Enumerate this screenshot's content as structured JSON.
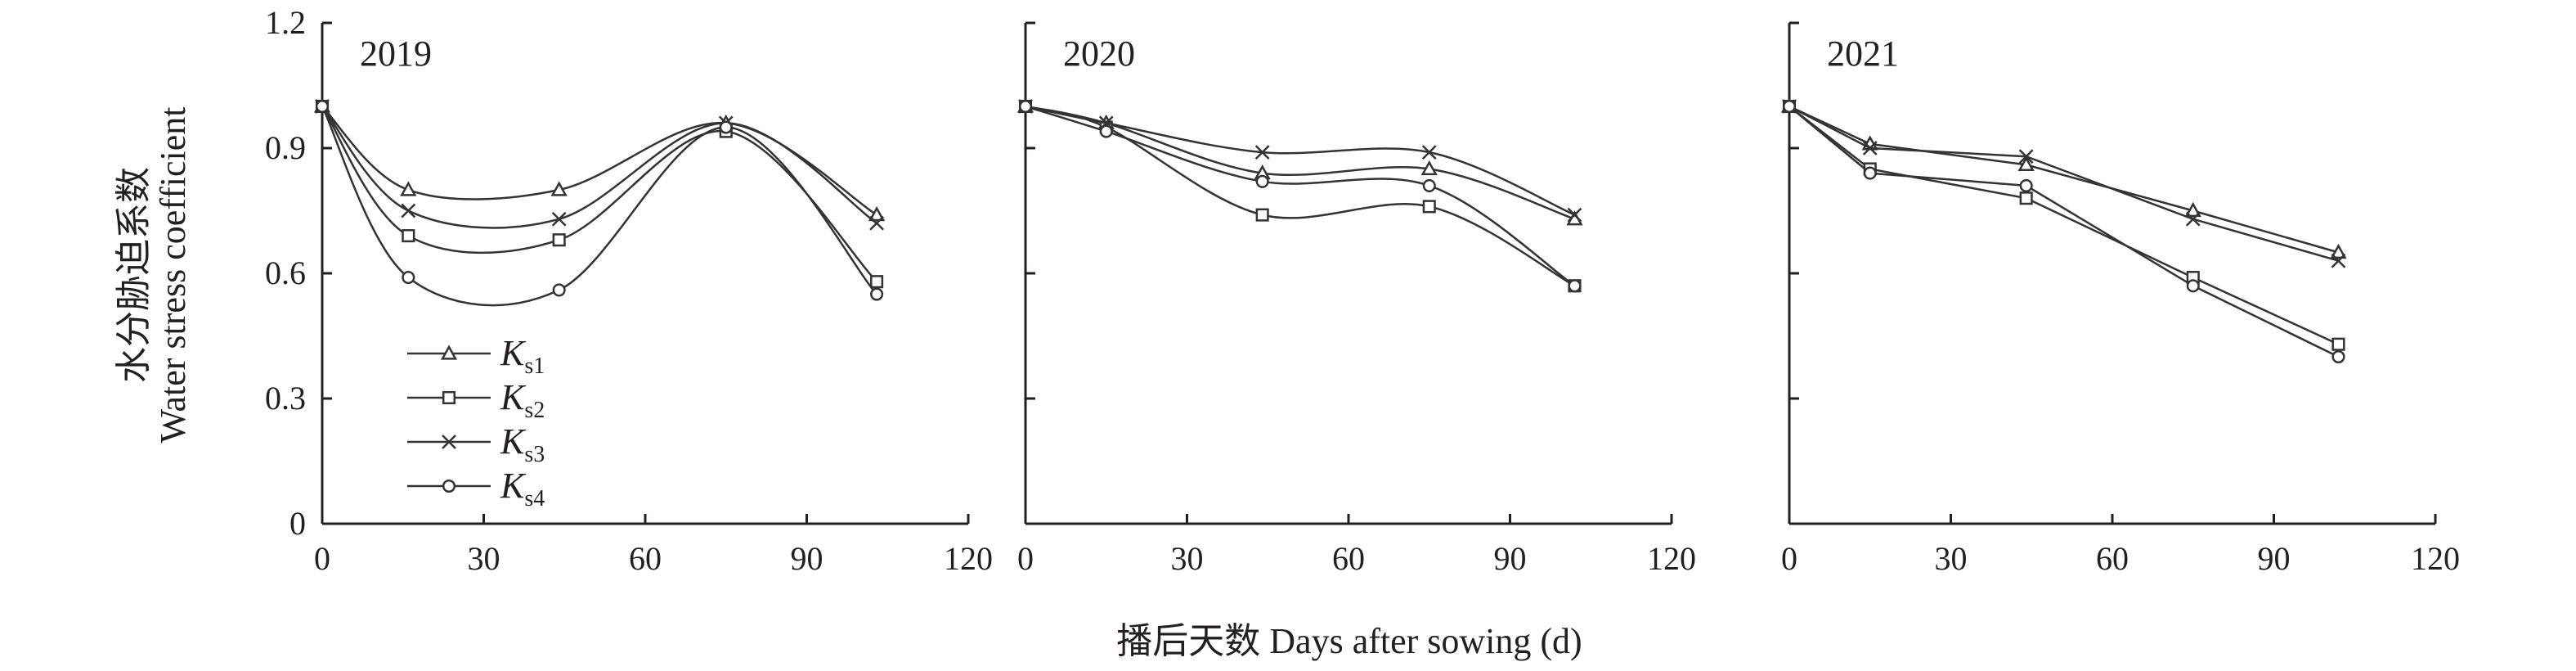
{
  "chart_data": {
    "type": "line",
    "ylabel_lines": [
      "水分胁迫系数",
      "Water stress coefficient"
    ],
    "xlabel": "播后天数 Days after sowing (d)",
    "ylim": [
      0,
      1.2
    ],
    "yticks": [
      "0",
      "0.3",
      "0.6",
      "0.9",
      "1.2"
    ],
    "xlim": [
      0,
      120
    ],
    "xticks": [
      "0",
      "30",
      "60",
      "90",
      "120"
    ],
    "legend": {
      "placement": "lower-left of first panel",
      "entries": [
        {
          "main": "K",
          "sub": "s1",
          "marker": "triangle"
        },
        {
          "main": "K",
          "sub": "s2",
          "marker": "square"
        },
        {
          "main": "K",
          "sub": "s3",
          "marker": "x"
        },
        {
          "main": "K",
          "sub": "s4",
          "marker": "circle"
        }
      ]
    },
    "panels": [
      {
        "title": "2019",
        "smooth": true,
        "series": [
          {
            "key": "s1",
            "x": [
              0,
              16,
              44,
              75,
              103
            ],
            "y": [
              1.0,
              0.8,
              0.8,
              0.96,
              0.74
            ]
          },
          {
            "key": "s2",
            "x": [
              0,
              16,
              44,
              75,
              103
            ],
            "y": [
              1.0,
              0.69,
              0.68,
              0.94,
              0.58
            ]
          },
          {
            "key": "s3",
            "x": [
              0,
              16,
              44,
              75,
              103
            ],
            "y": [
              1.0,
              0.75,
              0.73,
              0.96,
              0.72
            ]
          },
          {
            "key": "s4",
            "x": [
              0,
              16,
              44,
              75,
              103
            ],
            "y": [
              1.0,
              0.59,
              0.56,
              0.95,
              0.55
            ]
          }
        ]
      },
      {
        "title": "2020",
        "smooth": true,
        "series": [
          {
            "key": "s1",
            "x": [
              0,
              15,
              44,
              75,
              102
            ],
            "y": [
              1.0,
              0.96,
              0.84,
              0.85,
              0.73
            ]
          },
          {
            "key": "s2",
            "x": [
              0,
              15,
              44,
              75,
              102
            ],
            "y": [
              1.0,
              0.95,
              0.74,
              0.76,
              0.57
            ]
          },
          {
            "key": "s3",
            "x": [
              0,
              15,
              44,
              75,
              102
            ],
            "y": [
              1.0,
              0.96,
              0.89,
              0.89,
              0.74
            ]
          },
          {
            "key": "s4",
            "x": [
              0,
              15,
              44,
              75,
              102
            ],
            "y": [
              1.0,
              0.94,
              0.82,
              0.81,
              0.57
            ]
          }
        ]
      },
      {
        "title": "2021",
        "smooth": false,
        "series": [
          {
            "key": "s1",
            "x": [
              0,
              15,
              44,
              75,
              102
            ],
            "y": [
              1.0,
              0.91,
              0.86,
              0.75,
              0.65
            ]
          },
          {
            "key": "s2",
            "x": [
              0,
              15,
              44,
              75,
              102
            ],
            "y": [
              1.0,
              0.85,
              0.78,
              0.59,
              0.43
            ]
          },
          {
            "key": "s3",
            "x": [
              0,
              15,
              44,
              75,
              102
            ],
            "y": [
              1.0,
              0.9,
              0.88,
              0.73,
              0.63
            ]
          },
          {
            "key": "s4",
            "x": [
              0,
              15,
              44,
              75,
              102
            ],
            "y": [
              1.0,
              0.84,
              0.81,
              0.57,
              0.4
            ]
          }
        ]
      }
    ]
  }
}
